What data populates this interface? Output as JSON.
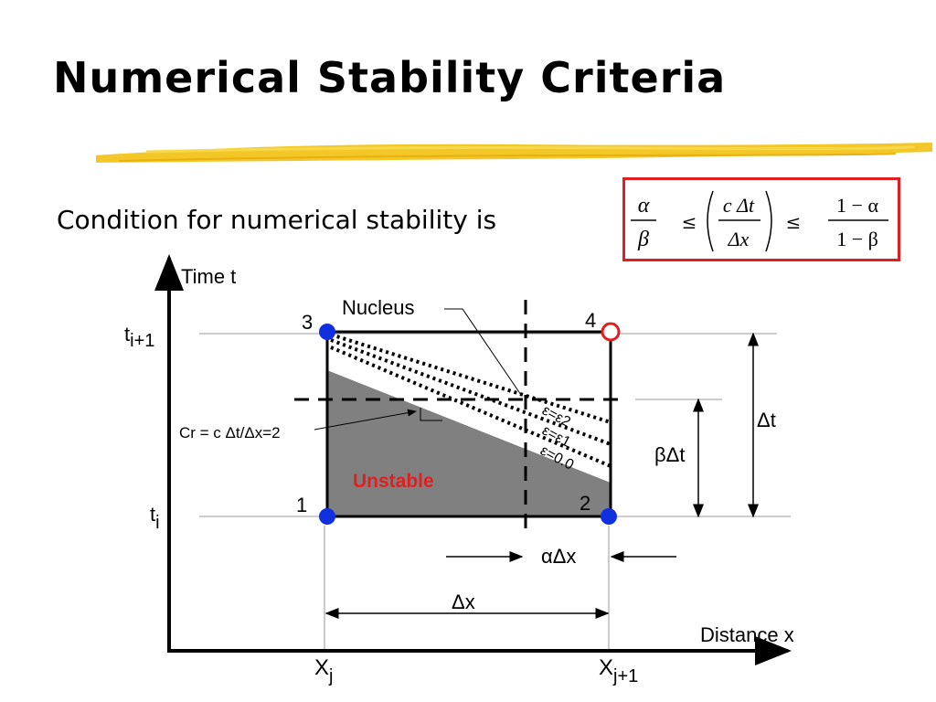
{
  "slide": {
    "title": "Numerical Stability Criteria",
    "subtitle": "Condition for numerical stability is"
  },
  "equation": {
    "lhs_num": "α",
    "lhs_den": "β",
    "leq1": "≤",
    "leq2": "≤",
    "mid_num": "c Δt",
    "mid_den": "Δx",
    "rhs_num": "1 − α",
    "rhs_den": "1 − β",
    "border_color": "#e02020"
  },
  "diagram": {
    "y_axis_label": "Time t",
    "x_axis_label": "Distance  x",
    "t_i1_base": "t",
    "t_i1_sub": "i+1",
    "t_i_base": "t",
    "t_i_sub": "i",
    "x_j_base": "X",
    "x_j_sub": "j",
    "x_j1_base": "X",
    "x_j1_sub": "j+1",
    "node1": "1",
    "node2": "2",
    "node3": "3",
    "node4": "4",
    "nucleus": "Nucleus",
    "courant": "Cr = c Δt/Δx=2",
    "unstable": "Unstable",
    "eps2": "ε=ε2",
    "eps1": "ε=ε1",
    "eps0": "ε=0.0",
    "dt": "Δt",
    "beta_dt": "βΔt",
    "alpha_dx": "αΔx",
    "dx": "Δx",
    "colors": {
      "unstable_text": "#e02020",
      "node_blue": "#1030e0",
      "node_open": "#e02020",
      "shade": "#808080"
    }
  }
}
